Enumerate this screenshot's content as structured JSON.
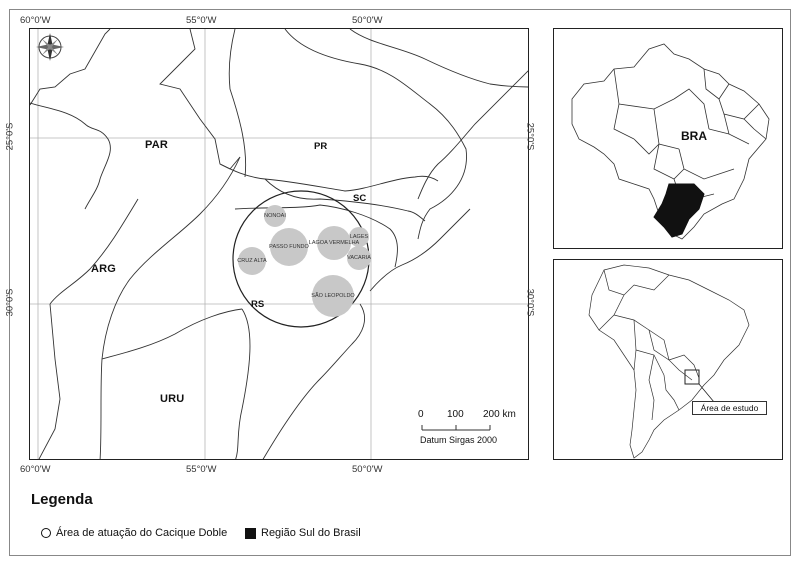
{
  "main_map": {
    "coords_top": [
      "60°0'W",
      "55°0'W",
      "50°0'W"
    ],
    "coords_bottom": [
      "60°0'W",
      "55°0'W",
      "50°0'W"
    ],
    "coords_left": [
      "25°0'S",
      "30°0'S"
    ],
    "coords_right": [
      "25°0'S",
      "30°0'S"
    ],
    "countries": {
      "par": "PAR",
      "arg": "ARG",
      "uru": "URU"
    },
    "states": {
      "pr": "PR",
      "sc": "SC",
      "rs": "RS"
    },
    "cities": [
      "NONOAI",
      "PASSO FUNDO",
      "LAGOA VERMELHA",
      "LAGES",
      "CRUZ ALTA",
      "VACARIA",
      "SÃO LEOPOLDO"
    ],
    "scale": {
      "ticks": [
        "0",
        "100",
        "200 km"
      ],
      "datum": "Datum Sirgas 2000"
    }
  },
  "inset_brazil": {
    "label": "BRA"
  },
  "inset_south_america": {
    "study_area_label": "Área de estudo"
  },
  "legend": {
    "title": "Legenda",
    "items": [
      "Área de atuação do Cacique Doble",
      "Região Sul do Brasil"
    ]
  },
  "colors": {
    "city_circle": "#c8c8c8",
    "south_region": "#111111",
    "grid": "#b5b5b5"
  }
}
